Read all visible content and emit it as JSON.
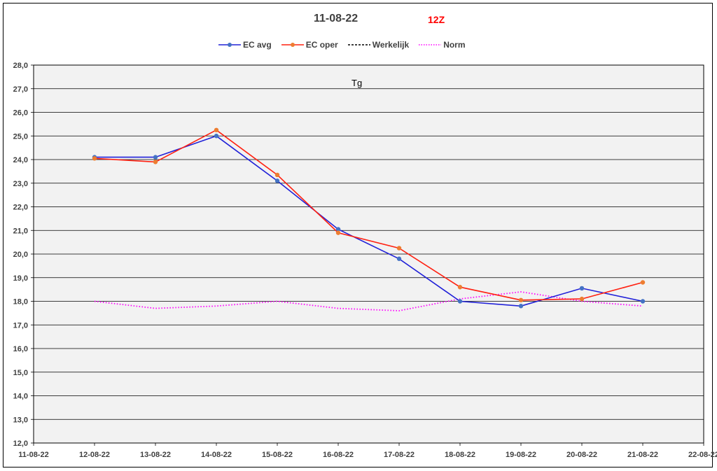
{
  "header": {
    "title": "11-08-22",
    "subtitle": "12Z"
  },
  "colors": {
    "ec_avg": "#2020d8",
    "ec_oper": "#ff2010",
    "ec_oper_marker": "#ed7d31",
    "ec_avg_marker": "#4472c4",
    "werkelijk": "#000000",
    "norm": "#ff00ff",
    "plot_bg": "#f2f2f2",
    "grid": "#000000"
  },
  "chart_data": {
    "type": "line",
    "x": [
      "11-08-22",
      "12-08-22",
      "13-08-22",
      "14-08-22",
      "15-08-22",
      "16-08-22",
      "17-08-22",
      "18-08-22",
      "19-08-22",
      "20-08-22",
      "21-08-22",
      "22-08-22"
    ],
    "ylim": [
      12.0,
      28.0
    ],
    "yticks": [
      "12,0",
      "13,0",
      "14,0",
      "15,0",
      "16,0",
      "17,0",
      "18,0",
      "19,0",
      "20,0",
      "21,0",
      "22,0",
      "23,0",
      "24,0",
      "25,0",
      "26,0",
      "27,0",
      "28,0"
    ],
    "annotation": "Tg",
    "grid": true,
    "legend_position": "top",
    "series": [
      {
        "name": "EC avg",
        "key": "ec_avg",
        "markers": true,
        "points": [
          [
            "12-08-22",
            24.1
          ],
          [
            "13-08-22",
            24.1
          ],
          [
            "14-08-22",
            25.0
          ],
          [
            "15-08-22",
            23.1
          ],
          [
            "16-08-22",
            21.05
          ],
          [
            "17-08-22",
            19.8
          ],
          [
            "18-08-22",
            18.0
          ],
          [
            "19-08-22",
            17.8
          ],
          [
            "20-08-22",
            18.55
          ],
          [
            "21-08-22",
            18.0
          ]
        ]
      },
      {
        "name": "EC oper",
        "key": "ec_oper",
        "markers": true,
        "points": [
          [
            "12-08-22",
            24.05
          ],
          [
            "13-08-22",
            23.9
          ],
          [
            "14-08-22",
            25.25
          ],
          [
            "15-08-22",
            23.35
          ],
          [
            "16-08-22",
            20.9
          ],
          [
            "17-08-22",
            20.25
          ],
          [
            "18-08-22",
            18.6
          ],
          [
            "19-08-22",
            18.05
          ],
          [
            "20-08-22",
            18.1
          ],
          [
            "21-08-22",
            18.8
          ]
        ]
      },
      {
        "name": "Werkelijk",
        "key": "werkelijk",
        "markers": false,
        "points": []
      },
      {
        "name": "Norm",
        "key": "norm",
        "markers": false,
        "points": [
          [
            "12-08-22",
            18.0
          ],
          [
            "13-08-22",
            17.7
          ],
          [
            "14-08-22",
            17.8
          ],
          [
            "15-08-22",
            18.0
          ],
          [
            "16-08-22",
            17.7
          ],
          [
            "17-08-22",
            17.6
          ],
          [
            "18-08-22",
            18.1
          ],
          [
            "19-08-22",
            18.4
          ],
          [
            "20-08-22",
            18.0
          ],
          [
            "21-08-22",
            17.8
          ]
        ]
      }
    ]
  }
}
